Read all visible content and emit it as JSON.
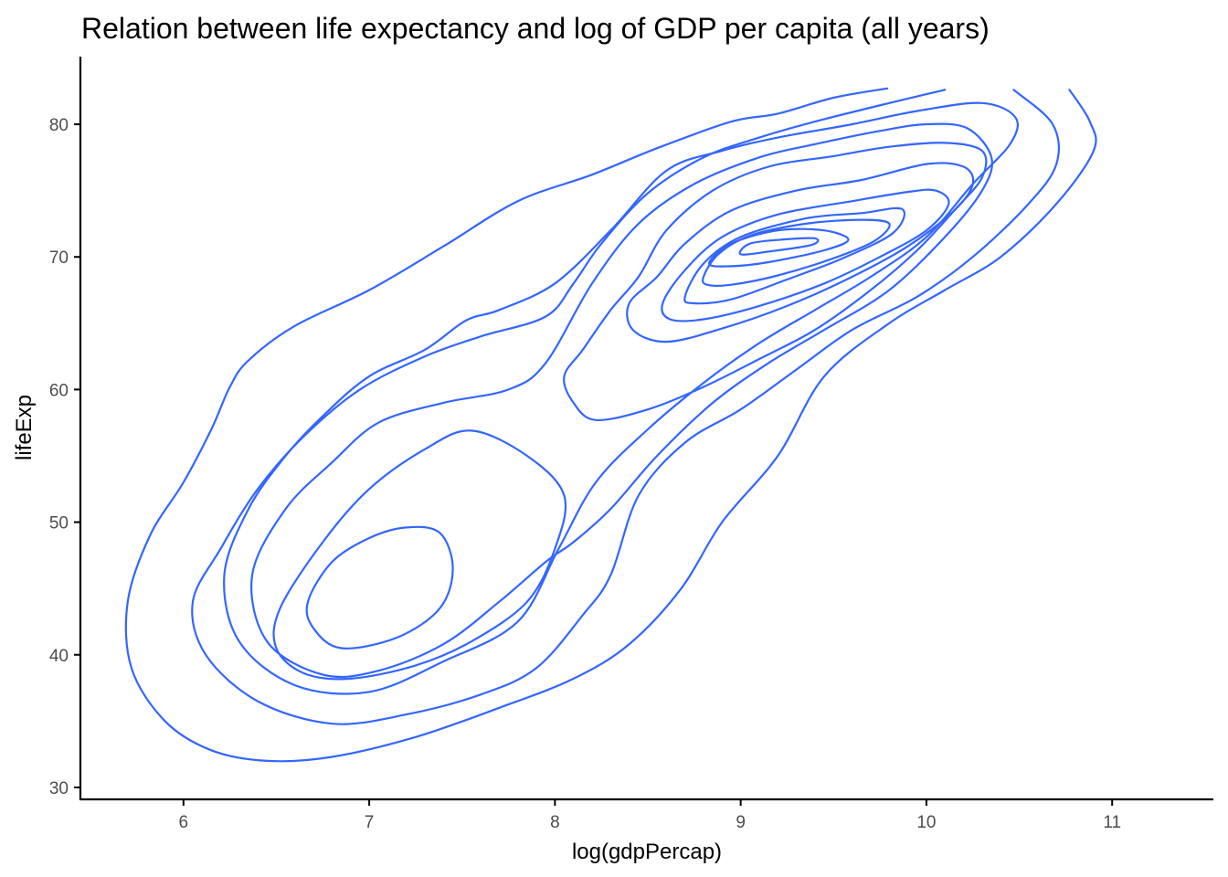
{
  "chart_data": {
    "type": "density2d",
    "title": "Relation between life expectancy and log of GDP per capita (all years)",
    "xlabel": "log(gdpPercap)",
    "ylabel": "lifeExp",
    "xlim": [
      5.45,
      11.55
    ],
    "ylim": [
      29.1,
      85.1
    ],
    "xticks": [
      "6",
      "7",
      "8",
      "9",
      "10",
      "11"
    ],
    "yticks": [
      "30",
      "40",
      "50",
      "60",
      "70",
      "80"
    ],
    "grid": false,
    "legend": "none",
    "line_color": "#3366FF",
    "series": [
      {
        "closed": false,
        "points": [
          [
            9.79,
            82.7
          ],
          [
            9.5,
            82.0
          ],
          [
            9.2,
            80.8
          ],
          [
            8.95,
            80.2
          ],
          [
            8.55,
            78.2
          ],
          [
            8.2,
            76.2
          ],
          [
            7.8,
            74.2
          ],
          [
            7.4,
            70.8
          ],
          [
            7.0,
            67.5
          ],
          [
            6.6,
            64.8
          ],
          [
            6.35,
            62.2
          ],
          [
            6.25,
            60.2
          ],
          [
            6.15,
            57.0
          ],
          [
            6.0,
            53.0
          ],
          [
            5.82,
            49.0
          ],
          [
            5.7,
            44.0
          ],
          [
            5.72,
            39.0
          ],
          [
            5.9,
            35.0
          ],
          [
            6.15,
            32.8
          ],
          [
            6.45,
            32.0
          ],
          [
            6.8,
            32.3
          ],
          [
            7.25,
            33.8
          ],
          [
            7.7,
            36.0
          ],
          [
            8.1,
            38.2
          ],
          [
            8.4,
            40.8
          ],
          [
            8.68,
            45.0
          ],
          [
            8.9,
            50.0
          ],
          [
            9.2,
            55.0
          ],
          [
            9.45,
            61.0
          ],
          [
            9.8,
            65.0
          ],
          [
            10.1,
            67.5
          ],
          [
            10.4,
            70.0
          ],
          [
            10.7,
            74.0
          ],
          [
            10.9,
            78.0
          ],
          [
            10.88,
            80.2
          ],
          [
            10.77,
            82.6
          ]
        ]
      },
      {
        "closed": false,
        "points": [
          [
            10.1,
            82.6
          ],
          [
            9.8,
            81.6
          ],
          [
            9.4,
            80.2
          ],
          [
            9.1,
            79.0
          ],
          [
            8.8,
            77.5
          ],
          [
            8.5,
            74.8
          ],
          [
            8.25,
            71.0
          ],
          [
            8.1,
            68.0
          ],
          [
            7.95,
            65.5
          ],
          [
            7.6,
            64.0
          ],
          [
            7.3,
            62.5
          ],
          [
            6.95,
            60.0
          ],
          [
            6.65,
            56.5
          ],
          [
            6.4,
            52.5
          ],
          [
            6.2,
            48.0
          ],
          [
            6.05,
            44.0
          ],
          [
            6.12,
            40.0
          ],
          [
            6.4,
            36.5
          ],
          [
            6.8,
            34.8
          ],
          [
            7.2,
            35.5
          ],
          [
            7.6,
            37.0
          ],
          [
            7.9,
            39.0
          ],
          [
            8.15,
            43.0
          ],
          [
            8.3,
            46.0
          ],
          [
            8.45,
            52.0
          ],
          [
            8.7,
            56.0
          ],
          [
            9.0,
            58.5
          ],
          [
            9.3,
            61.5
          ],
          [
            9.6,
            64.5
          ],
          [
            9.95,
            67.0
          ],
          [
            10.25,
            70.0
          ],
          [
            10.55,
            74.0
          ],
          [
            10.7,
            77.0
          ],
          [
            10.68,
            80.0
          ],
          [
            10.47,
            82.6
          ]
        ]
      },
      {
        "closed": true,
        "points": [
          [
            7.52,
            65.2
          ],
          [
            7.3,
            63.0
          ],
          [
            7.0,
            61.0
          ],
          [
            6.75,
            58.0
          ],
          [
            6.55,
            55.0
          ],
          [
            6.35,
            51.0
          ],
          [
            6.22,
            46.0
          ],
          [
            6.3,
            41.0
          ],
          [
            6.6,
            37.7
          ],
          [
            7.0,
            37.2
          ],
          [
            7.4,
            39.5
          ],
          [
            7.8,
            42.5
          ],
          [
            8.02,
            48.0
          ],
          [
            8.22,
            53.0
          ],
          [
            8.5,
            57.0
          ],
          [
            8.8,
            60.5
          ],
          [
            9.1,
            63.5
          ],
          [
            9.4,
            66.0
          ],
          [
            9.7,
            68.5
          ],
          [
            10.0,
            71.5
          ],
          [
            10.25,
            75.5
          ],
          [
            10.45,
            78.5
          ],
          [
            10.48,
            80.5
          ],
          [
            10.3,
            81.6
          ],
          [
            9.95,
            81.0
          ],
          [
            9.6,
            80.0
          ],
          [
            9.2,
            79.0
          ],
          [
            8.9,
            78.0
          ],
          [
            8.6,
            76.5
          ],
          [
            8.3,
            72.0
          ],
          [
            8.0,
            68.0
          ],
          [
            7.7,
            66.0
          ]
        ]
      },
      {
        "closed": true,
        "points": [
          [
            8.3,
            51.0
          ],
          [
            8.55,
            55.0
          ],
          [
            8.85,
            59.0
          ],
          [
            9.15,
            62.0
          ],
          [
            9.45,
            64.5
          ],
          [
            9.8,
            67.5
          ],
          [
            10.1,
            71.5
          ],
          [
            10.3,
            75.0
          ],
          [
            10.35,
            77.5
          ],
          [
            10.22,
            79.7
          ],
          [
            10.0,
            80.0
          ],
          [
            9.75,
            79.5
          ],
          [
            9.4,
            78.5
          ],
          [
            9.1,
            77.5
          ],
          [
            8.75,
            75.5
          ],
          [
            8.45,
            72.5
          ],
          [
            8.2,
            68.0
          ],
          [
            7.95,
            62.0
          ],
          [
            7.75,
            60.0
          ],
          [
            7.4,
            59.0
          ],
          [
            7.05,
            57.5
          ],
          [
            6.8,
            54.5
          ],
          [
            6.55,
            51.0
          ],
          [
            6.37,
            46.0
          ],
          [
            6.45,
            41.0
          ],
          [
            6.75,
            38.5
          ],
          [
            7.05,
            38.8
          ],
          [
            7.4,
            40.8
          ],
          [
            7.7,
            44.0
          ],
          [
            7.95,
            47.0
          ],
          [
            8.1,
            48.5
          ]
        ]
      },
      {
        "closed": true,
        "points": [
          [
            6.52,
            43.5
          ],
          [
            6.75,
            48.5
          ],
          [
            7.0,
            52.5
          ],
          [
            7.3,
            55.5
          ],
          [
            7.55,
            56.9
          ],
          [
            7.85,
            55.0
          ],
          [
            8.05,
            52.0
          ],
          [
            8.0,
            48.0
          ],
          [
            7.85,
            44.0
          ],
          [
            7.55,
            41.0
          ],
          [
            7.25,
            39.2
          ],
          [
            6.9,
            38.2
          ],
          [
            6.65,
            38.6
          ],
          [
            6.5,
            40.5
          ]
        ]
      },
      {
        "closed": true,
        "points": [
          [
            6.67,
            44.0
          ],
          [
            6.8,
            47.0
          ],
          [
            7.0,
            48.8
          ],
          [
            7.2,
            49.6
          ],
          [
            7.38,
            49.2
          ],
          [
            7.45,
            46.5
          ],
          [
            7.38,
            43.5
          ],
          [
            7.15,
            41.3
          ],
          [
            6.85,
            40.5
          ],
          [
            6.7,
            42.0
          ]
        ]
      },
      {
        "closed": true,
        "points": [
          [
            8.1,
            59.0
          ],
          [
            8.22,
            57.7
          ],
          [
            8.5,
            58.5
          ],
          [
            8.8,
            60.2
          ],
          [
            9.1,
            62.3
          ],
          [
            9.4,
            64.5
          ],
          [
            9.7,
            67.5
          ],
          [
            9.95,
            70.5
          ],
          [
            10.15,
            73.5
          ],
          [
            10.3,
            76.0
          ],
          [
            10.3,
            78.0
          ],
          [
            10.1,
            78.6
          ],
          [
            9.8,
            78.3
          ],
          [
            9.5,
            77.6
          ],
          [
            9.15,
            76.8
          ],
          [
            8.85,
            75.0
          ],
          [
            8.6,
            72.0
          ],
          [
            8.45,
            68.5
          ],
          [
            8.3,
            66.0
          ],
          [
            8.15,
            63.0
          ],
          [
            8.05,
            61.0
          ]
        ]
      },
      {
        "closed": true,
        "points": [
          [
            8.4,
            66.5
          ],
          [
            8.55,
            68.5
          ],
          [
            8.7,
            71.0
          ],
          [
            8.95,
            73.5
          ],
          [
            9.3,
            75.0
          ],
          [
            9.65,
            75.8
          ],
          [
            10.0,
            77.0
          ],
          [
            10.2,
            76.8
          ],
          [
            10.25,
            75.5
          ],
          [
            10.15,
            73.5
          ],
          [
            9.9,
            70.8
          ],
          [
            9.6,
            68.5
          ],
          [
            9.25,
            66.3
          ],
          [
            8.9,
            64.6
          ],
          [
            8.6,
            63.6
          ],
          [
            8.42,
            64.5
          ]
        ]
      },
      {
        "closed": true,
        "points": [
          [
            8.58,
            66.5
          ],
          [
            8.7,
            69.0
          ],
          [
            8.9,
            71.5
          ],
          [
            9.2,
            73.2
          ],
          [
            9.6,
            74.2
          ],
          [
            9.9,
            74.9
          ],
          [
            10.05,
            75.0
          ],
          [
            10.12,
            74.0
          ],
          [
            10.0,
            72.0
          ],
          [
            9.75,
            70.0
          ],
          [
            9.45,
            68.0
          ],
          [
            9.1,
            66.3
          ],
          [
            8.8,
            65.3
          ],
          [
            8.62,
            65.3
          ]
        ]
      },
      {
        "closed": true,
        "points": [
          [
            8.7,
            67.0
          ],
          [
            8.8,
            69.5
          ],
          [
            9.0,
            71.5
          ],
          [
            9.35,
            72.9
          ],
          [
            9.65,
            73.3
          ],
          [
            9.87,
            73.6
          ],
          [
            9.82,
            71.8
          ],
          [
            9.55,
            69.9
          ],
          [
            9.25,
            68.3
          ],
          [
            8.95,
            66.8
          ],
          [
            8.75,
            66.5
          ]
        ]
      },
      {
        "closed": true,
        "points": [
          [
            8.8,
            68.5
          ],
          [
            8.88,
            70.2
          ],
          [
            9.05,
            71.6
          ],
          [
            9.35,
            72.5
          ],
          [
            9.65,
            72.8
          ],
          [
            9.8,
            72.5
          ],
          [
            9.72,
            71.2
          ],
          [
            9.5,
            69.9
          ],
          [
            9.2,
            68.6
          ],
          [
            8.95,
            67.9
          ],
          [
            8.82,
            67.9
          ]
        ]
      },
      {
        "closed": true,
        "points": [
          [
            8.83,
            69.5
          ],
          [
            8.95,
            71.0
          ],
          [
            9.2,
            72.0
          ],
          [
            9.45,
            72.0
          ],
          [
            9.58,
            71.3
          ],
          [
            9.45,
            70.5
          ],
          [
            9.15,
            69.6
          ],
          [
            8.95,
            69.3
          ]
        ]
      },
      {
        "closed": true,
        "points": [
          [
            9.0,
            70.2
          ],
          [
            9.05,
            71.0
          ],
          [
            9.22,
            71.3
          ],
          [
            9.4,
            71.4
          ],
          [
            9.38,
            70.9
          ],
          [
            9.15,
            70.4
          ]
        ]
      }
    ]
  }
}
